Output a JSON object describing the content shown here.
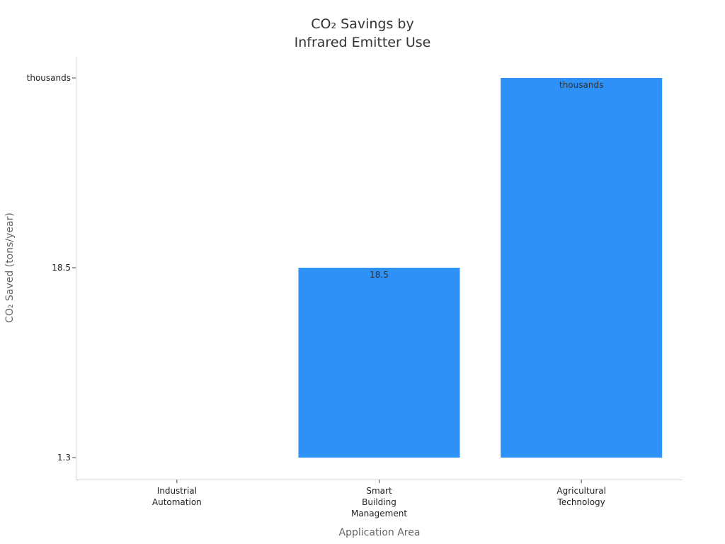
{
  "chart_data": {
    "type": "bar",
    "title_lines": [
      "CO₂ Savings by",
      "Infrared Emitter Use"
    ],
    "xlabel": "Application Area",
    "ylabel": "CO₂ Saved (tons/year)",
    "y_scale": "categorical",
    "y_ticks": [
      "1.3",
      "18.5",
      "thousands"
    ],
    "categories": [
      [
        "Industrial",
        "Automation"
      ],
      [
        "Smart",
        "Building",
        "Management"
      ],
      [
        "Agricultural",
        "Technology"
      ]
    ],
    "values": [
      "1.3",
      "18.5",
      "thousands"
    ],
    "data_labels": [
      "",
      "18.5",
      "thousands"
    ],
    "bar_color": "#2e91f7",
    "grid": false,
    "legend": "none"
  }
}
